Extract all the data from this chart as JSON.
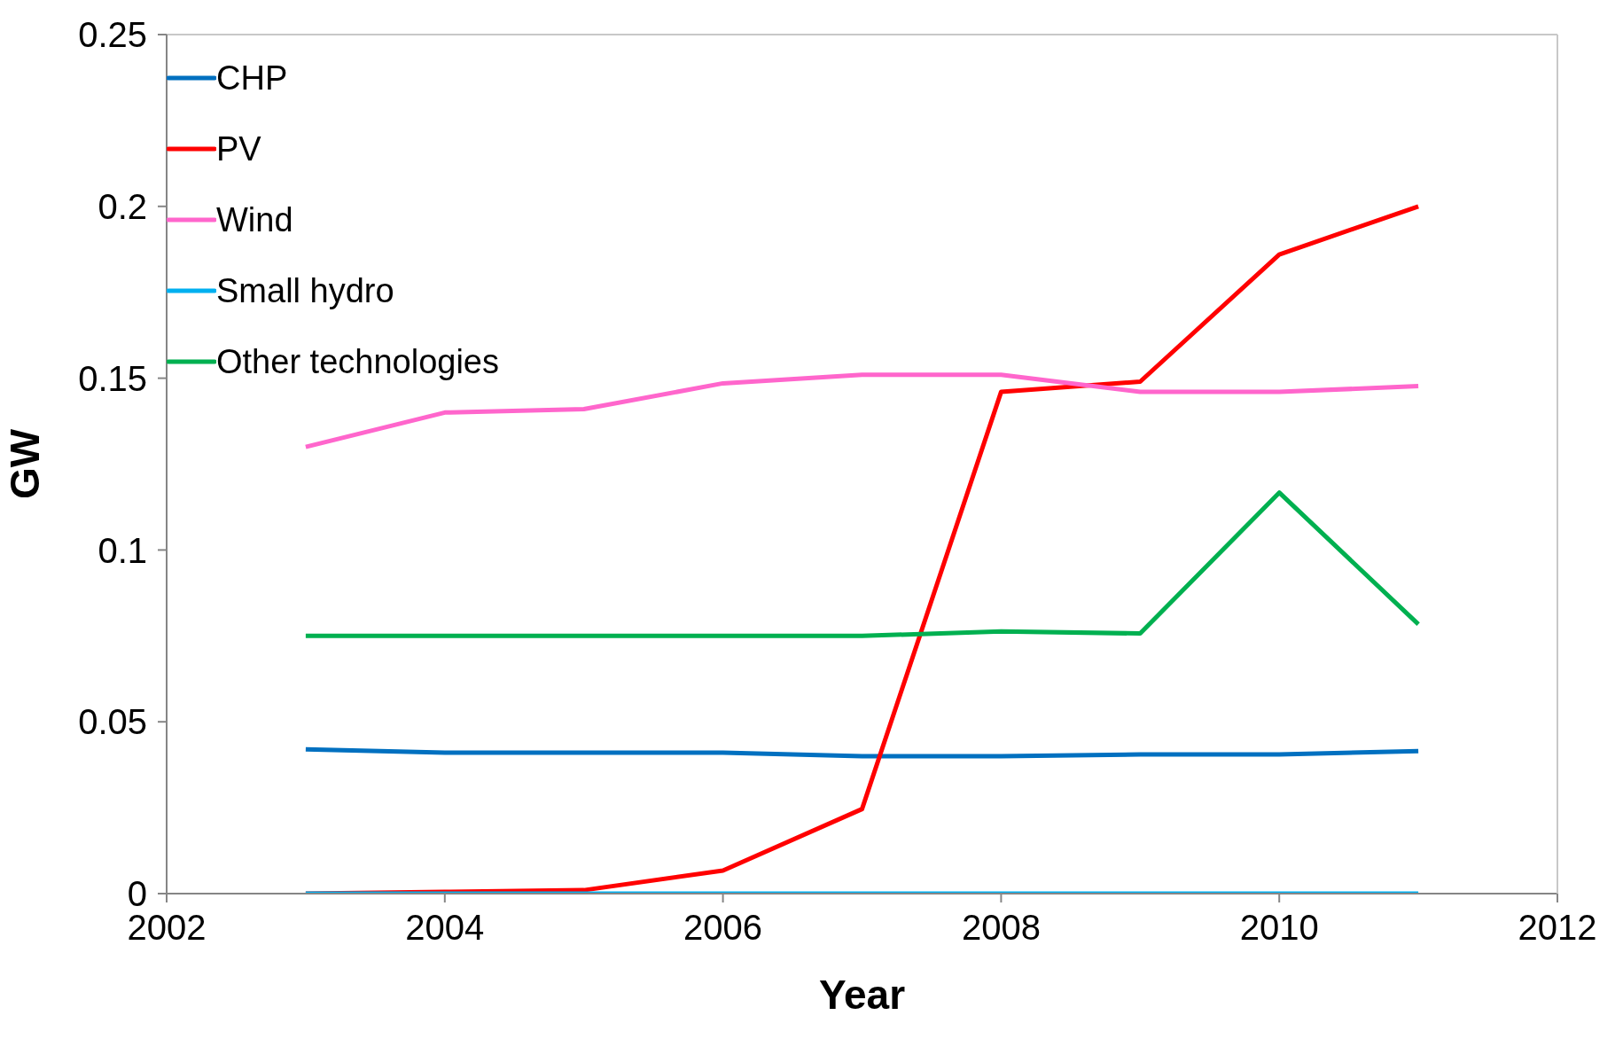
{
  "chart_data": {
    "type": "line",
    "xlabel": "Year",
    "ylabel": "GW",
    "x": [
      2003,
      2004,
      2005,
      2006,
      2007,
      2008,
      2009,
      2010,
      2011
    ],
    "xlim": [
      2002,
      2012
    ],
    "xticks": [
      2002,
      2004,
      2006,
      2008,
      2010,
      2012
    ],
    "ylim": [
      0,
      0.25
    ],
    "yticks": [
      0,
      0.05,
      0.1,
      0.15,
      0.2,
      0.25
    ],
    "grid": false,
    "legend": "top left",
    "marker": "none",
    "line_style": "solid",
    "series": [
      {
        "name": "CHP",
        "color": "#0070c0",
        "values": [
          0.042,
          0.041,
          0.041,
          0.041,
          0.04,
          0.04,
          0.0405,
          0.0405,
          0.0415
        ]
      },
      {
        "name": "PV",
        "color": "#ff0000",
        "values": [
          0,
          0.0005,
          0.001,
          0.0067,
          0.0246,
          0.146,
          0.149,
          0.186,
          0.2
        ]
      },
      {
        "name": "Wind",
        "color": "#ff66cc",
        "values": [
          0.13,
          0.14,
          0.141,
          0.1485,
          0.151,
          0.151,
          0.146,
          0.146,
          0.1477
        ]
      },
      {
        "name": "Small hydro",
        "color": "#00b0f0",
        "values": [
          0,
          0,
          0,
          0,
          0,
          0,
          0,
          0,
          0
        ]
      },
      {
        "name": "Other technologies",
        "color": "#00b050",
        "values": [
          0.075,
          0.075,
          0.075,
          0.075,
          0.075,
          0.0763,
          0.0757,
          0.1167,
          0.0784
        ]
      }
    ]
  }
}
